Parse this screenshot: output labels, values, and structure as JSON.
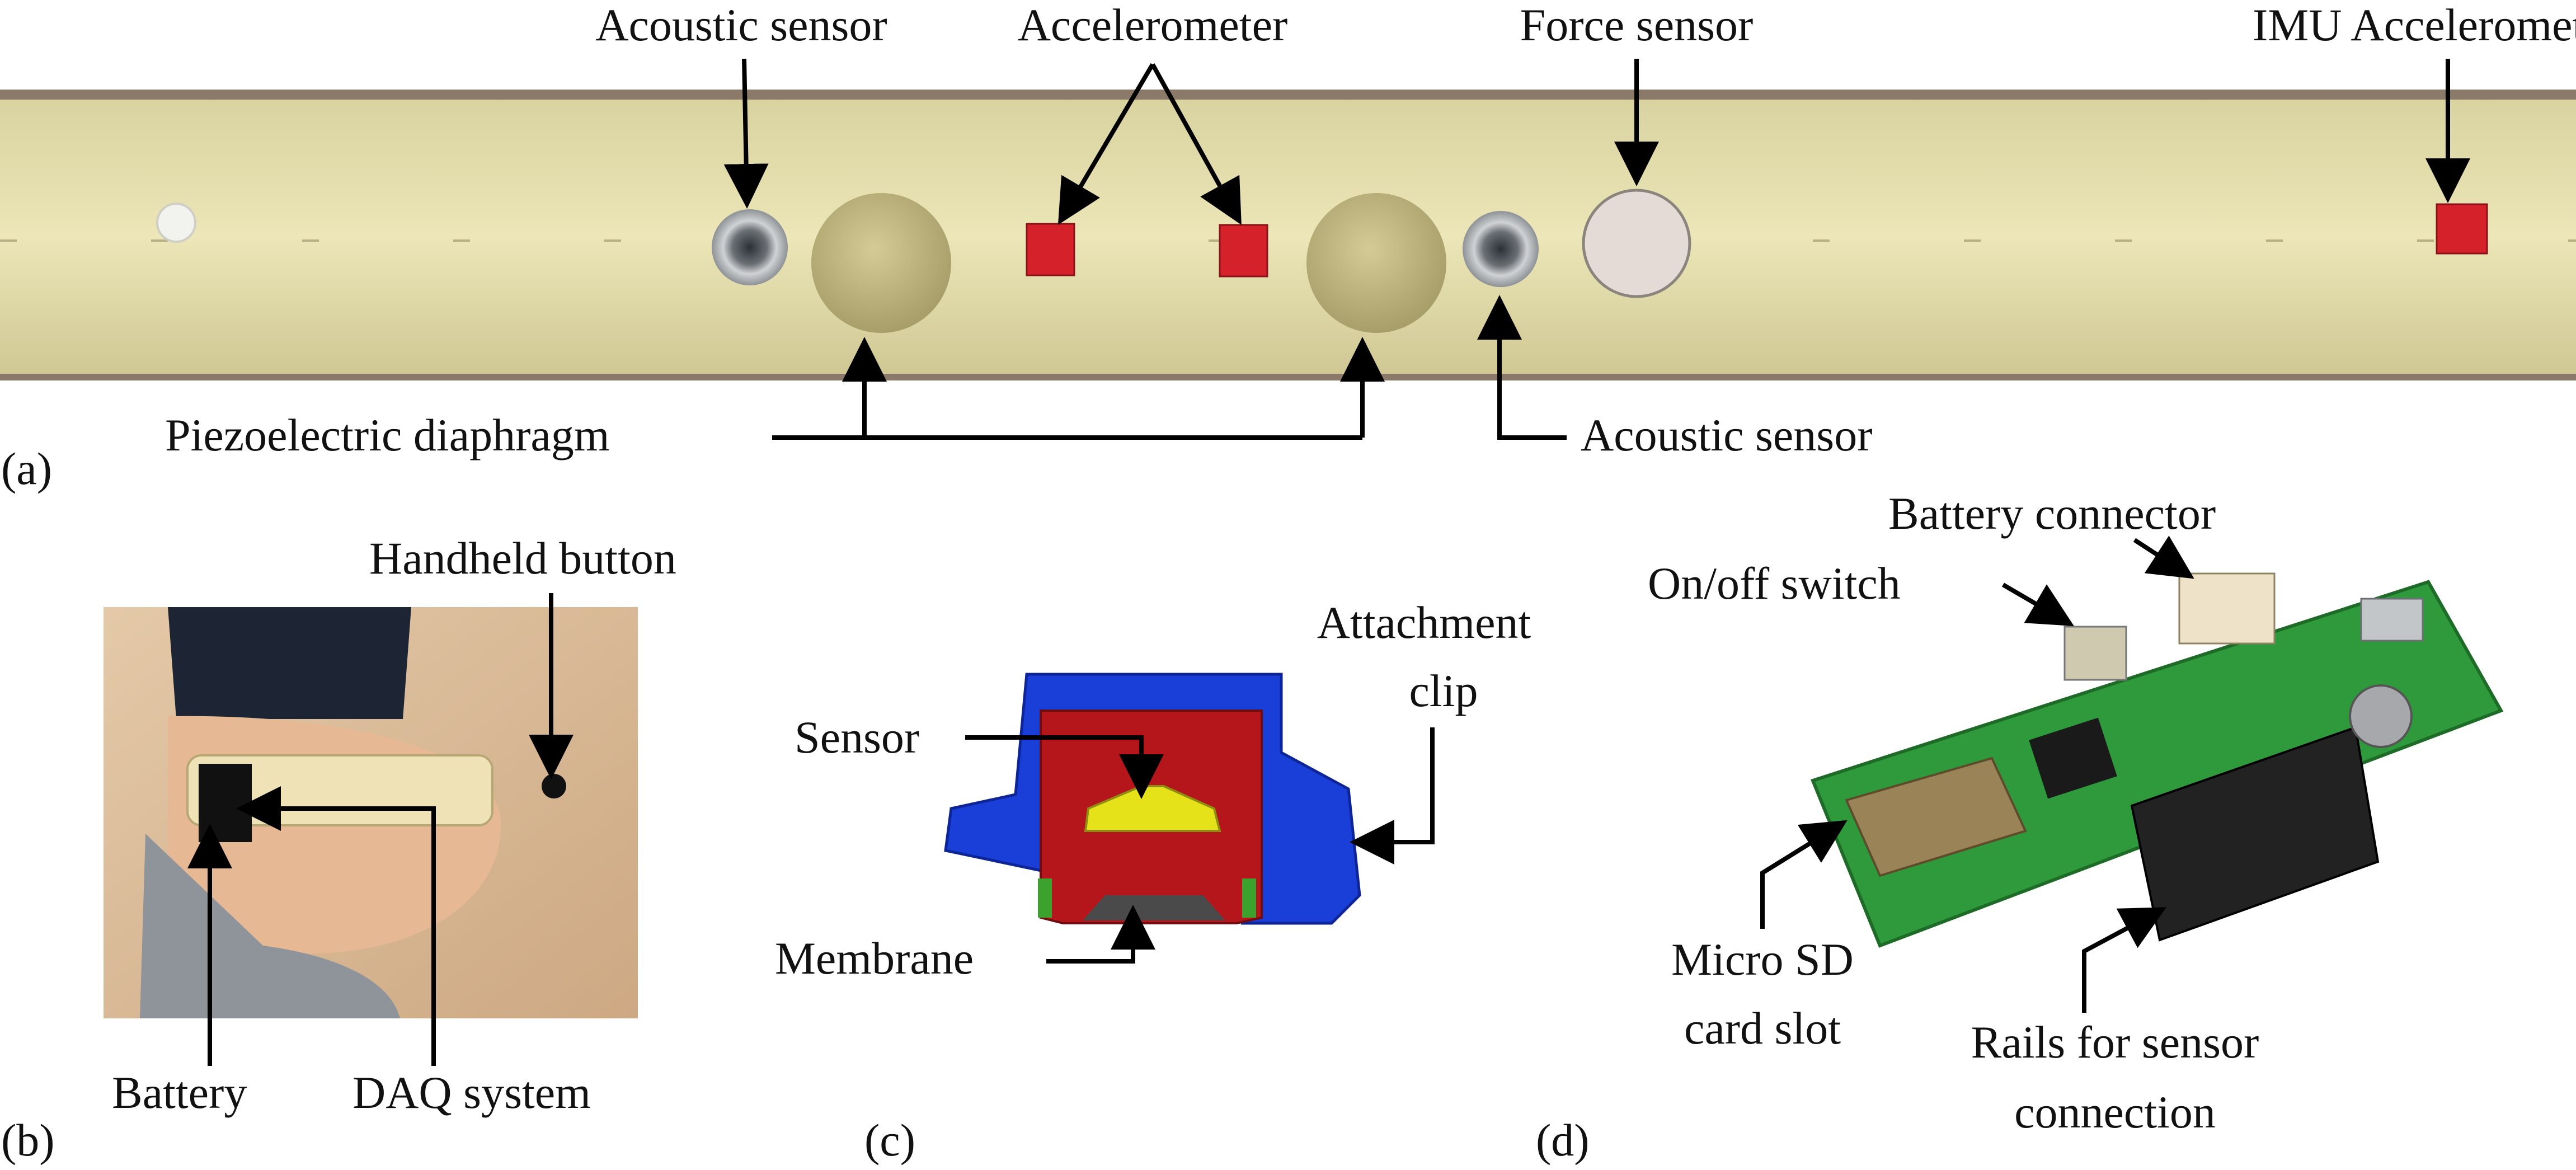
{
  "panel_tags": {
    "a": "(a)",
    "b": "(b)",
    "c": "(c)",
    "d": "(d)"
  },
  "panel_a": {
    "labels": {
      "acoustic_sensor_top": "Acoustic sensor",
      "accelerometer": "Accelerometer",
      "force_sensor": "Force sensor",
      "imu_accelerometer": "IMU Accelerometer",
      "piezoelectric_diaphragm": "Piezoelectric diaphragm",
      "acoustic_sensor_bottom": "Acoustic sensor"
    }
  },
  "panel_b": {
    "labels": {
      "handheld_button": "Handheld button",
      "battery": "Battery",
      "daq_system": "DAQ system"
    }
  },
  "panel_c": {
    "labels": {
      "attachment_clip_1": "Attachment",
      "attachment_clip_2": "clip",
      "sensor": "Sensor",
      "membrane": "Membrane"
    }
  },
  "panel_d": {
    "labels": {
      "battery_connector": "Battery connector",
      "on_off_switch": "On/off switch",
      "micro_sd_1": "Micro SD",
      "micro_sd_2": "card slot",
      "rails_1": "Rails for sensor",
      "rails_2": "connection"
    }
  },
  "colors": {
    "belt": "#e8e2b0",
    "clip_blue": "#1a3fd8",
    "clip_red": "#b5161c",
    "sensor_yellow": "#e5e21a",
    "pcb_green": "#2f9a3c",
    "accel_red": "#d5222a"
  }
}
